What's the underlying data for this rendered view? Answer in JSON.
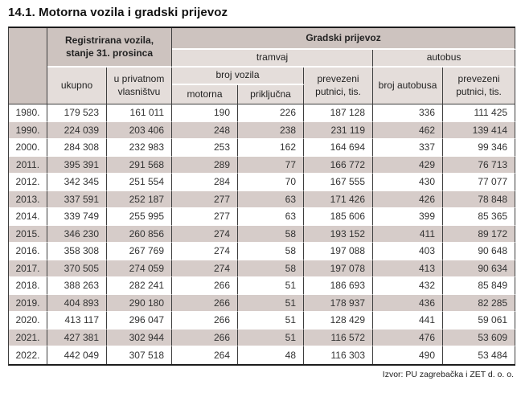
{
  "page": {
    "title": "14.1. Motorna vozila i gradski prijevoz",
    "source": "Izvor: PU zagrebačka i ZET d. o. o."
  },
  "colors": {
    "header_dark": "#cdc3bf",
    "header_light": "#e4ddda",
    "row_shade": "#d6ccc9",
    "border": "#3e3e3e",
    "frame": "#1c1c1c"
  },
  "table": {
    "header": {
      "corner": "",
      "registered_vehicles_group": "Registrirana vozila, stanje 31. prosinca",
      "city_transport_group": "Gradski prijevoz",
      "tram_group": "tramvaj",
      "bus_group": "autobus",
      "col_total": "ukupno",
      "col_private": "u privatnom vlasništvu",
      "vehicles_count_group": "broj vozila",
      "col_motor": "motorna",
      "col_trailer": "priključna",
      "col_tram_passengers": "prevezeni putnici, tis.",
      "col_bus_count": "broj autobusa",
      "col_bus_passengers": "prevezeni putnici, tis."
    },
    "rows": [
      [
        "1980.",
        "179 523",
        "161 011",
        "190",
        "226",
        "187 128",
        "336",
        "111 425"
      ],
      [
        "1990.",
        "224 039",
        "203 406",
        "248",
        "238",
        "231 119",
        "462",
        "139 414"
      ],
      [
        "2000.",
        "284 308",
        "232 983",
        "253",
        "162",
        "164 694",
        "337",
        "99 346"
      ],
      [
        "2011.",
        "395 391",
        "291 568",
        "289",
        "77",
        "166 772",
        "429",
        "76 713"
      ],
      [
        "2012.",
        "342 345",
        "251 554",
        "284",
        "70",
        "167 555",
        "430",
        "77 077"
      ],
      [
        "2013.",
        "337 591",
        "252 187",
        "277",
        "63",
        "171 426",
        "426",
        "78 848"
      ],
      [
        "2014.",
        "339 749",
        "255 995",
        "277",
        "63",
        "185 606",
        "399",
        "85 365"
      ],
      [
        "2015.",
        "346 230",
        "260 856",
        "274",
        "58",
        "193 152",
        "411",
        "89 172"
      ],
      [
        "2016.",
        "358 308",
        "267 769",
        "274",
        "58",
        "197 088",
        "403",
        "90 648"
      ],
      [
        "2017.",
        "370 505",
        "274 059",
        "274",
        "58",
        "197 078",
        "413",
        "90 634"
      ],
      [
        "2018.",
        "388 263",
        "282 241",
        "266",
        "51",
        "186 693",
        "432",
        "85 849"
      ],
      [
        "2019.",
        "404 893",
        "290 180",
        "266",
        "51",
        "178 937",
        "436",
        "82 285"
      ],
      [
        "2020.",
        "413 117",
        "296 047",
        "266",
        "51",
        "128 429",
        "441",
        "59 061"
      ],
      [
        "2021.",
        "427 381",
        "302 944",
        "266",
        "51",
        "116 572",
        "476",
        "53 609"
      ],
      [
        "2022.",
        "442 049",
        "307 518",
        "264",
        "48",
        "116 303",
        "490",
        "53 484"
      ]
    ]
  }
}
